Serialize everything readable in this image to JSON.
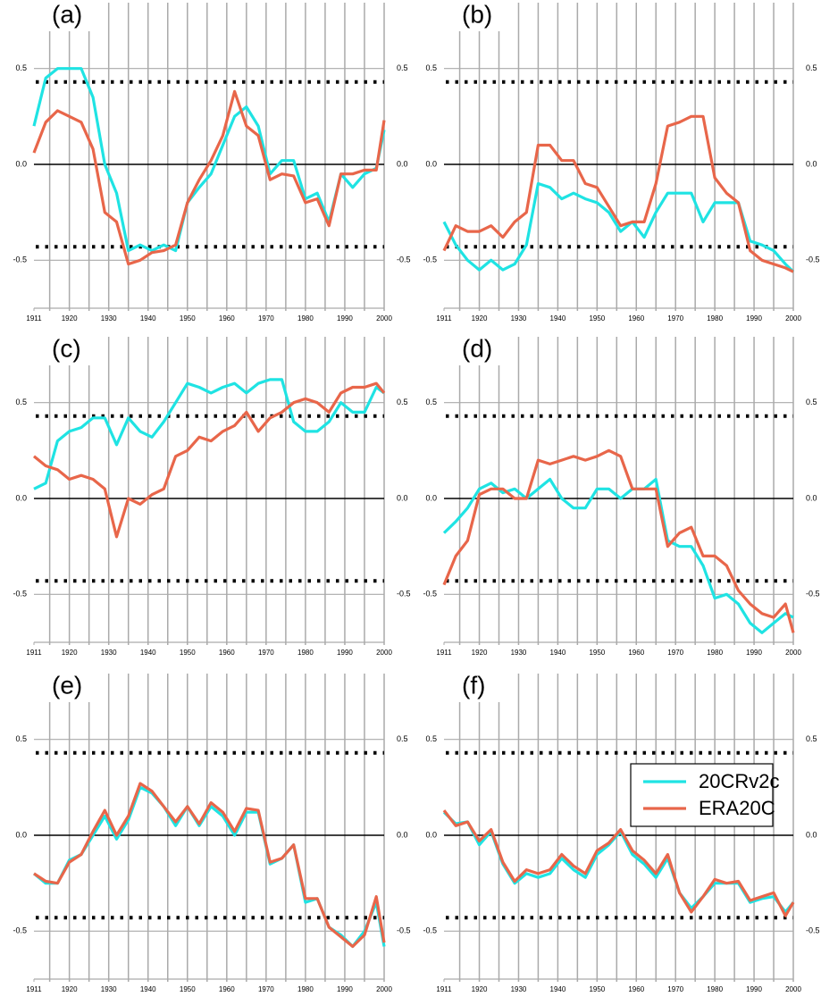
{
  "chart_data": [
    {
      "type": "line",
      "title": "(a)",
      "x": [
        1911,
        1914,
        1917,
        1920,
        1923,
        1926,
        1929,
        1932,
        1935,
        1938,
        1941,
        1944,
        1947,
        1950,
        1953,
        1956,
        1959,
        1962,
        1965,
        1968,
        1971,
        1974,
        1977,
        1980,
        1983,
        1986,
        1989,
        1992,
        1995,
        1998,
        2000
      ],
      "xlim": [
        1911,
        2000
      ],
      "xticks": [
        1911,
        1920,
        1930,
        1940,
        1950,
        1960,
        1970,
        1980,
        1990,
        2000
      ],
      "x_gridlines": [
        1915,
        1920,
        1925,
        1930,
        1935,
        1940,
        1945,
        1950,
        1955,
        1960,
        1965,
        1970,
        1975,
        1980,
        1985,
        1990,
        1995,
        2000
      ],
      "ylim": [
        -0.75,
        0.75
      ],
      "yticks": [
        -0.5,
        {
          "value": 0,
          "label": "0.0"
        },
        0.5
      ],
      "threshold_lines": [
        0.43,
        -0.43
      ],
      "series": [
        {
          "color": "#1fe3e3",
          "values": [
            0.2,
            0.45,
            0.5,
            0.5,
            0.5,
            0.35,
            0.0,
            -0.15,
            -0.45,
            -0.42,
            -0.45,
            -0.42,
            -0.45,
            -0.2,
            -0.12,
            -0.05,
            0.1,
            0.25,
            0.3,
            0.2,
            -0.05,
            0.02,
            0.02,
            -0.18,
            -0.15,
            -0.3,
            -0.05,
            -0.12,
            -0.05,
            -0.02,
            0.18
          ]
        },
        {
          "color": "#e8664a",
          "values": [
            0.06,
            0.22,
            0.28,
            0.25,
            0.22,
            0.08,
            -0.25,
            -0.3,
            -0.52,
            -0.5,
            -0.46,
            -0.45,
            -0.42,
            -0.2,
            -0.08,
            0.02,
            0.15,
            0.38,
            0.2,
            0.15,
            -0.08,
            -0.05,
            -0.06,
            -0.2,
            -0.18,
            -0.32,
            -0.05,
            -0.05,
            -0.03,
            -0.03,
            0.23
          ]
        }
      ]
    },
    {
      "type": "line",
      "title": "(b)",
      "x": [
        1911,
        1914,
        1917,
        1920,
        1923,
        1926,
        1929,
        1932,
        1935,
        1938,
        1941,
        1944,
        1947,
        1950,
        1953,
        1956,
        1959,
        1962,
        1965,
        1968,
        1971,
        1974,
        1977,
        1980,
        1983,
        1986,
        1989,
        1992,
        1995,
        1998,
        2000
      ],
      "xlim": [
        1911,
        2000
      ],
      "xticks": [
        1911,
        1920,
        1930,
        1940,
        1950,
        1960,
        1970,
        1980,
        1990,
        2000
      ],
      "x_gridlines": [
        1915,
        1920,
        1925,
        1930,
        1935,
        1940,
        1945,
        1950,
        1955,
        1960,
        1965,
        1970,
        1975,
        1980,
        1985,
        1990,
        1995,
        2000
      ],
      "ylim": [
        -0.75,
        0.75
      ],
      "yticks": [
        -0.5,
        {
          "value": 0,
          "label": "0.0"
        },
        0.5
      ],
      "threshold_lines": [
        0.43,
        -0.43
      ],
      "series": [
        {
          "color": "#1fe3e3",
          "values": [
            -0.3,
            -0.42,
            -0.5,
            -0.55,
            -0.5,
            -0.55,
            -0.52,
            -0.42,
            -0.1,
            -0.12,
            -0.18,
            -0.15,
            -0.18,
            -0.2,
            -0.25,
            -0.35,
            -0.3,
            -0.38,
            -0.25,
            -0.15,
            -0.15,
            -0.15,
            -0.3,
            -0.2,
            -0.2,
            -0.2,
            -0.4,
            -0.42,
            -0.45,
            -0.52,
            -0.56
          ]
        },
        {
          "color": "#e8664a",
          "values": [
            -0.45,
            -0.32,
            -0.35,
            -0.35,
            -0.32,
            -0.38,
            -0.3,
            -0.25,
            0.1,
            0.1,
            0.02,
            0.02,
            -0.1,
            -0.12,
            -0.22,
            -0.32,
            -0.3,
            -0.3,
            -0.1,
            0.2,
            0.22,
            0.25,
            0.25,
            -0.07,
            -0.15,
            -0.2,
            -0.45,
            -0.5,
            -0.52,
            -0.54,
            -0.56
          ]
        }
      ]
    },
    {
      "type": "line",
      "title": "(c)",
      "x": [
        1911,
        1914,
        1917,
        1920,
        1923,
        1926,
        1929,
        1932,
        1935,
        1938,
        1941,
        1944,
        1947,
        1950,
        1953,
        1956,
        1959,
        1962,
        1965,
        1968,
        1971,
        1974,
        1977,
        1980,
        1983,
        1986,
        1989,
        1992,
        1995,
        1998,
        2000
      ],
      "xlim": [
        1911,
        2000
      ],
      "xticks": [
        1911,
        1920,
        1930,
        1940,
        1950,
        1960,
        1970,
        1980,
        1990,
        2000
      ],
      "x_gridlines": [
        1915,
        1920,
        1925,
        1930,
        1935,
        1940,
        1945,
        1950,
        1955,
        1960,
        1965,
        1970,
        1975,
        1980,
        1985,
        1990,
        1995,
        2000
      ],
      "ylim": [
        -0.75,
        0.75
      ],
      "yticks": [
        -0.5,
        {
          "value": 0,
          "label": "0.0"
        },
        0.5
      ],
      "threshold_lines": [
        0.43,
        -0.43
      ],
      "series": [
        {
          "color": "#1fe3e3",
          "values": [
            0.05,
            0.08,
            0.3,
            0.35,
            0.37,
            0.42,
            0.42,
            0.28,
            0.42,
            0.35,
            0.32,
            0.4,
            0.5,
            0.6,
            0.58,
            0.55,
            0.58,
            0.6,
            0.55,
            0.6,
            0.62,
            0.62,
            0.4,
            0.35,
            0.35,
            0.4,
            0.5,
            0.45,
            0.45,
            0.58,
            0.55
          ]
        },
        {
          "color": "#e8664a",
          "values": [
            0.22,
            0.17,
            0.15,
            0.1,
            0.12,
            0.1,
            0.05,
            -0.2,
            0.0,
            -0.03,
            0.02,
            0.05,
            0.22,
            0.25,
            0.32,
            0.3,
            0.35,
            0.38,
            0.45,
            0.35,
            0.42,
            0.45,
            0.5,
            0.52,
            0.5,
            0.45,
            0.55,
            0.58,
            0.58,
            0.6,
            0.55
          ]
        }
      ]
    },
    {
      "type": "line",
      "title": "(d)",
      "x": [
        1911,
        1914,
        1917,
        1920,
        1923,
        1926,
        1929,
        1932,
        1935,
        1938,
        1941,
        1944,
        1947,
        1950,
        1953,
        1956,
        1959,
        1962,
        1965,
        1968,
        1971,
        1974,
        1977,
        1980,
        1983,
        1986,
        1989,
        1992,
        1995,
        1998,
        2000
      ],
      "xlim": [
        1911,
        2000
      ],
      "xticks": [
        1911,
        1920,
        1930,
        1940,
        1950,
        1960,
        1970,
        1980,
        1990,
        2000
      ],
      "x_gridlines": [
        1915,
        1920,
        1925,
        1930,
        1935,
        1940,
        1945,
        1950,
        1955,
        1960,
        1965,
        1970,
        1975,
        1980,
        1985,
        1990,
        1995,
        2000
      ],
      "ylim": [
        -0.75,
        0.75
      ],
      "yticks": [
        -0.5,
        {
          "value": 0,
          "label": "0.0"
        },
        0.5
      ],
      "threshold_lines": [
        0.43,
        -0.43
      ],
      "series": [
        {
          "color": "#1fe3e3",
          "values": [
            -0.18,
            -0.12,
            -0.05,
            0.05,
            0.08,
            0.03,
            0.05,
            0.0,
            0.05,
            0.1,
            0.0,
            -0.05,
            -0.05,
            0.05,
            0.05,
            0.0,
            0.05,
            0.05,
            0.1,
            -0.22,
            -0.25,
            -0.25,
            -0.35,
            -0.52,
            -0.5,
            -0.55,
            -0.65,
            -0.7,
            -0.65,
            -0.6,
            -0.62
          ]
        },
        {
          "color": "#e8664a",
          "values": [
            -0.45,
            -0.3,
            -0.22,
            0.02,
            0.05,
            0.05,
            0.0,
            0.0,
            0.2,
            0.18,
            0.2,
            0.22,
            0.2,
            0.22,
            0.25,
            0.22,
            0.05,
            0.05,
            0.05,
            -0.25,
            -0.18,
            -0.15,
            -0.3,
            -0.3,
            -0.35,
            -0.48,
            -0.55,
            -0.6,
            -0.62,
            -0.55,
            -0.7
          ]
        }
      ]
    },
    {
      "type": "line",
      "title": "(e)",
      "x": [
        1911,
        1914,
        1917,
        1920,
        1923,
        1926,
        1929,
        1932,
        1935,
        1938,
        1941,
        1944,
        1947,
        1950,
        1953,
        1956,
        1959,
        1962,
        1965,
        1968,
        1971,
        1974,
        1977,
        1980,
        1983,
        1986,
        1989,
        1992,
        1995,
        1998,
        2000
      ],
      "xlim": [
        1911,
        2000
      ],
      "xticks": [
        1911,
        1920,
        1930,
        1940,
        1950,
        1960,
        1970,
        1980,
        1990,
        2000
      ],
      "x_gridlines": [
        1915,
        1920,
        1925,
        1930,
        1935,
        1940,
        1945,
        1950,
        1955,
        1960,
        1965,
        1970,
        1975,
        1980,
        1985,
        1990,
        1995,
        2000
      ],
      "ylim": [
        -0.75,
        0.75
      ],
      "yticks": [
        -0.5,
        {
          "value": 0,
          "label": "0.0"
        },
        0.5
      ],
      "threshold_lines": [
        0.43,
        -0.43
      ],
      "series": [
        {
          "color": "#1fe3e3",
          "values": [
            -0.2,
            -0.25,
            -0.25,
            -0.13,
            -0.1,
            0.0,
            0.1,
            -0.02,
            0.08,
            0.25,
            0.22,
            0.15,
            0.05,
            0.15,
            0.05,
            0.15,
            0.1,
            0.0,
            0.12,
            0.12,
            -0.15,
            -0.12,
            -0.05,
            -0.35,
            -0.33,
            -0.48,
            -0.52,
            -0.58,
            -0.5,
            -0.35,
            -0.58
          ]
        },
        {
          "color": "#e8664a",
          "values": [
            -0.2,
            -0.24,
            -0.25,
            -0.14,
            -0.1,
            0.02,
            0.13,
            0.0,
            0.1,
            0.27,
            0.23,
            0.15,
            0.07,
            0.15,
            0.06,
            0.17,
            0.12,
            0.02,
            0.14,
            0.13,
            -0.14,
            -0.12,
            -0.05,
            -0.33,
            -0.33,
            -0.48,
            -0.53,
            -0.58,
            -0.52,
            -0.32,
            -0.56
          ]
        }
      ]
    },
    {
      "type": "line",
      "title": "(f)",
      "x": [
        1911,
        1914,
        1917,
        1920,
        1923,
        1926,
        1929,
        1932,
        1935,
        1938,
        1941,
        1944,
        1947,
        1950,
        1953,
        1956,
        1959,
        1962,
        1965,
        1968,
        1971,
        1974,
        1977,
        1980,
        1983,
        1986,
        1989,
        1992,
        1995,
        1998,
        2000
      ],
      "xlim": [
        1911,
        2000
      ],
      "xticks": [
        1911,
        1920,
        1930,
        1940,
        1950,
        1960,
        1970,
        1980,
        1990,
        2000
      ],
      "x_gridlines": [
        1915,
        1920,
        1925,
        1930,
        1935,
        1940,
        1945,
        1950,
        1955,
        1960,
        1965,
        1970,
        1975,
        1980,
        1985,
        1990,
        1995,
        2000
      ],
      "ylim": [
        -0.75,
        0.75
      ],
      "yticks": [
        -0.5,
        {
          "value": 0,
          "label": "0.0"
        },
        0.5
      ],
      "threshold_lines": [
        0.43,
        -0.43
      ],
      "legend": "upper right",
      "series": [
        {
          "name": "20CRv2c",
          "color": "#1fe3e3",
          "values": [
            0.12,
            0.06,
            0.07,
            -0.05,
            0.02,
            -0.15,
            -0.25,
            -0.2,
            -0.22,
            -0.2,
            -0.12,
            -0.18,
            -0.22,
            -0.1,
            -0.05,
            0.02,
            -0.1,
            -0.15,
            -0.22,
            -0.12,
            -0.3,
            -0.38,
            -0.32,
            -0.25,
            -0.25,
            -0.25,
            -0.35,
            -0.33,
            -0.32,
            -0.4,
            -0.35
          ]
        },
        {
          "name": "ERA20C",
          "color": "#e8664a",
          "values": [
            0.13,
            0.05,
            0.07,
            -0.03,
            0.03,
            -0.14,
            -0.24,
            -0.18,
            -0.2,
            -0.18,
            -0.1,
            -0.16,
            -0.2,
            -0.08,
            -0.04,
            0.03,
            -0.08,
            -0.13,
            -0.2,
            -0.1,
            -0.3,
            -0.4,
            -0.32,
            -0.23,
            -0.25,
            -0.24,
            -0.34,
            -0.32,
            -0.3,
            -0.42,
            -0.35
          ]
        }
      ]
    }
  ]
}
